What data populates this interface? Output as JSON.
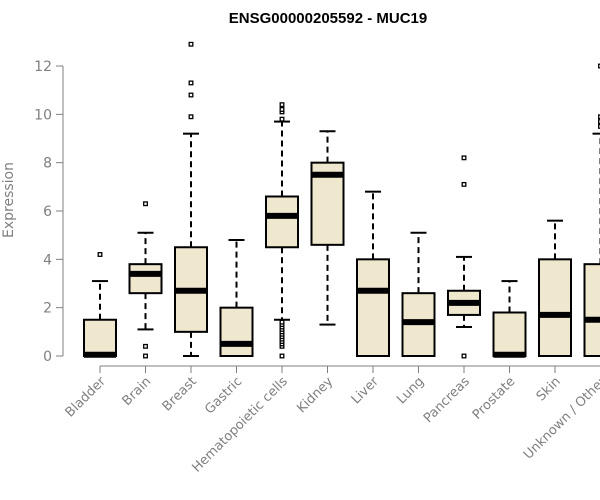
{
  "chart_data": {
    "type": "box",
    "title": "ENSG00000205592 - MUC19",
    "xlabel": "",
    "ylabel": "Expression",
    "ylim": [
      0,
      12
    ],
    "yticks": [
      0,
      2,
      4,
      6,
      8,
      10,
      12
    ],
    "box_fill": "#efe8cf",
    "categories": [
      "Bladder",
      "Brain",
      "Breast",
      "Gastric",
      "Hematopoietic cells",
      "Kidney",
      "Liver",
      "Lung",
      "Pancreas",
      "Prostate",
      "Skin",
      "Unknown / Other"
    ],
    "boxes": [
      {
        "category": "Bladder",
        "whisker_low": 0,
        "q1": 0,
        "median": 0.05,
        "q3": 1.5,
        "whisker_high": 3.1,
        "outliers": [
          4.2
        ]
      },
      {
        "category": "Brain",
        "whisker_low": 1.1,
        "q1": 2.6,
        "median": 3.4,
        "q3": 3.8,
        "whisker_high": 5.1,
        "outliers": [
          0.4,
          0,
          6.3
        ]
      },
      {
        "category": "Breast",
        "whisker_low": 0,
        "q1": 1.0,
        "median": 2.7,
        "q3": 4.5,
        "whisker_high": 9.2,
        "outliers": [
          9.9,
          10.8,
          11.3,
          12.9
        ]
      },
      {
        "category": "Gastric",
        "whisker_low": 0,
        "q1": 0,
        "median": 0.5,
        "q3": 2.0,
        "whisker_high": 4.8,
        "outliers": []
      },
      {
        "category": "Hematopoietic cells",
        "whisker_low": 1.5,
        "q1": 4.5,
        "median": 5.8,
        "q3": 6.6,
        "whisker_high": 9.7,
        "outliers": [
          0,
          0.4,
          0.5,
          0.6,
          0.7,
          0.8,
          0.9,
          1.0,
          1.1,
          1.2,
          1.3,
          1.4,
          9.8,
          10.1,
          10.2,
          10.4
        ]
      },
      {
        "category": "Kidney",
        "whisker_low": 1.3,
        "q1": 4.6,
        "median": 7.5,
        "q3": 8.0,
        "whisker_high": 9.3,
        "outliers": []
      },
      {
        "category": "Liver",
        "whisker_low": 0,
        "q1": 0,
        "median": 2.7,
        "q3": 4.0,
        "whisker_high": 6.8,
        "outliers": []
      },
      {
        "category": "Lung",
        "whisker_low": 0,
        "q1": 0,
        "median": 1.4,
        "q3": 2.6,
        "whisker_high": 5.1,
        "outliers": []
      },
      {
        "category": "Pancreas",
        "whisker_low": 1.2,
        "q1": 1.7,
        "median": 2.2,
        "q3": 2.7,
        "whisker_high": 4.1,
        "outliers": [
          0,
          7.1,
          8.2
        ]
      },
      {
        "category": "Prostate",
        "whisker_low": 0,
        "q1": 0,
        "median": 0.05,
        "q3": 1.8,
        "whisker_high": 3.1,
        "outliers": []
      },
      {
        "category": "Skin",
        "whisker_low": 0,
        "q1": 0,
        "median": 1.7,
        "q3": 4.0,
        "whisker_high": 5.6,
        "outliers": []
      },
      {
        "category": "Unknown / Other",
        "whisker_low": 0,
        "q1": 0,
        "median": 1.5,
        "q3": 3.8,
        "whisker_high": 9.2,
        "outliers": [
          9.5,
          9.7,
          9.9,
          12.0
        ]
      }
    ]
  }
}
